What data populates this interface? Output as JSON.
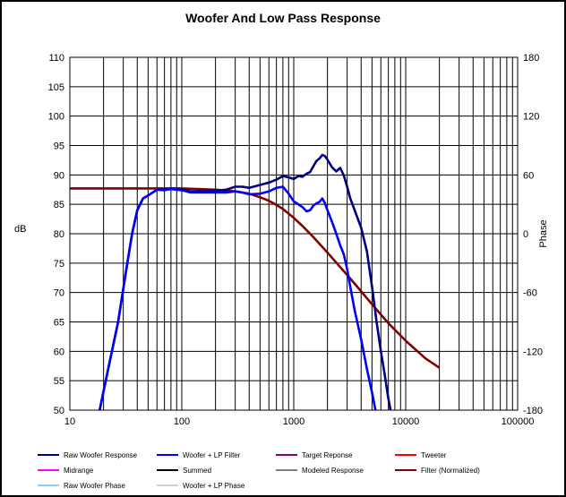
{
  "chart_data": {
    "type": "line",
    "title": "Woofer  And  Low Pass Response",
    "xlabel": "",
    "ylabel": "dB",
    "y2label": "Phase",
    "x_scale": "log",
    "xlim": [
      10,
      100000
    ],
    "ylim": [
      50,
      110
    ],
    "y2lim": [
      -180,
      180
    ],
    "x_ticks": [
      10,
      100,
      1000,
      10000,
      100000
    ],
    "x_tick_labels": [
      "10",
      "100",
      "1000",
      "10000",
      "100000"
    ],
    "y_ticks": [
      50,
      55,
      60,
      65,
      70,
      75,
      80,
      85,
      90,
      95,
      100,
      105,
      110
    ],
    "y_tick_labels": [
      "50",
      "55",
      "60",
      "65",
      "70",
      "75",
      "80",
      "85",
      "90",
      "95",
      "100",
      "105",
      "110"
    ],
    "y2_ticks": [
      -180,
      -120,
      -60,
      0,
      60,
      120,
      180
    ],
    "y2_tick_labels": [
      "-180",
      "-120",
      "-60",
      "0",
      "60",
      "120",
      "180"
    ],
    "grid": true,
    "legend_position": "bottom",
    "legend": [
      {
        "name": "Raw Woofer Response",
        "color": "#000080"
      },
      {
        "name": "Woofer + LP Filter",
        "color": "#0000FF"
      },
      {
        "name": "Target Reponse",
        "color": "#800080"
      },
      {
        "name": "Tweeter",
        "color": "#FF0000"
      },
      {
        "name": "Midrange",
        "color": "#FF00FF"
      },
      {
        "name": "Summed",
        "color": "#000000"
      },
      {
        "name": "Modeled Response",
        "color": "#808080"
      },
      {
        "name": "Filter (Normalized)",
        "color": "#800000"
      },
      {
        "name": "Raw Woofer Phase",
        "color": "#00A0FF"
      },
      {
        "name": "Woofer + LP  Phase",
        "color": "#A0A0A0"
      }
    ],
    "series": [
      {
        "name": "Raw Woofer Response",
        "color": "#000080",
        "x": [
          18,
          22,
          27,
          32,
          36,
          40,
          45,
          50,
          60,
          70,
          80,
          100,
          120,
          150,
          200,
          250,
          300,
          350,
          400,
          500,
          600,
          700,
          800,
          900,
          1000,
          1100,
          1200,
          1300,
          1400,
          1500,
          1600,
          1700,
          1800,
          1900,
          2000,
          2200,
          2400,
          2600,
          2800,
          3000,
          3200,
          3500,
          4000,
          4500,
          5000,
          5500,
          6000,
          6500,
          7000,
          7500
        ],
        "y": [
          49,
          57,
          65,
          74,
          80,
          84,
          86,
          86.5,
          87.5,
          87.5,
          87.7,
          87.5,
          87.2,
          87.2,
          87.3,
          87.5,
          88,
          88,
          87.8,
          88.3,
          88.7,
          89.2,
          89.8,
          89.6,
          89.3,
          89.8,
          89.7,
          90.2,
          90.5,
          91.5,
          92.4,
          92.8,
          93.4,
          93.2,
          92.6,
          91.3,
          90.6,
          91.2,
          89.9,
          88,
          86,
          84,
          81,
          77,
          71,
          65,
          60,
          56,
          52,
          49
        ]
      },
      {
        "name": "Woofer + LP Filter",
        "color": "#0000FF",
        "x": [
          18,
          22,
          27,
          32,
          36,
          40,
          45,
          50,
          60,
          70,
          80,
          100,
          120,
          150,
          200,
          250,
          300,
          350,
          400,
          500,
          600,
          700,
          800,
          900,
          1000,
          1100,
          1200,
          1300,
          1400,
          1500,
          1600,
          1700,
          1800,
          1900,
          2000,
          2200,
          2400,
          2600,
          2800,
          3000,
          3200,
          3500,
          4000,
          4500,
          5000,
          5500
        ],
        "y": [
          49,
          57,
          65,
          74,
          80,
          84,
          86,
          86.5,
          87.5,
          87.4,
          87.6,
          87.4,
          87,
          87,
          87,
          87,
          87.2,
          87,
          86.7,
          86.8,
          87.2,
          87.8,
          88,
          86.8,
          85.5,
          85,
          84.5,
          83.8,
          84,
          84.8,
          85.2,
          85.4,
          86,
          85.2,
          84,
          82,
          80,
          78,
          76.5,
          74,
          71,
          67,
          62,
          57,
          53,
          49
        ]
      },
      {
        "name": "Filter (Normalized)",
        "color": "#800000",
        "x": [
          10,
          50,
          100,
          200,
          300,
          400,
          500,
          600,
          700,
          800,
          1000,
          1200,
          1500,
          2000,
          2500,
          3000,
          4000,
          5000,
          7000,
          10000,
          15000,
          20000
        ],
        "y": [
          87.7,
          87.7,
          87.7,
          87.5,
          87.2,
          86.8,
          86.2,
          85.6,
          84.9,
          84.2,
          82.7,
          81.3,
          79.4,
          76.8,
          74.7,
          73,
          70.2,
          68,
          64.8,
          61.8,
          58.8,
          57.2
        ]
      }
    ]
  }
}
